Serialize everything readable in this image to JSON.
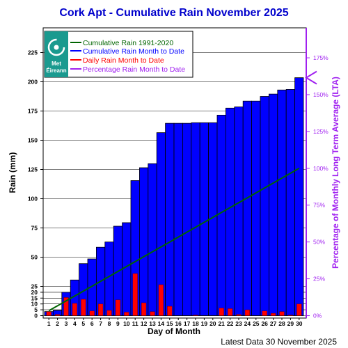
{
  "chart_data": {
    "type": "bar",
    "title": "Cork Apt - Cumulative Rain November   2025",
    "xlabel": "Day of Month",
    "ylabel": "Rain (mm)",
    "y2label": "Percentage of Monthly Long Term Average (LTA)",
    "footer": "Latest Data 30 November 2025",
    "logo_text": [
      "Met",
      "Éireann"
    ],
    "ylim": [
      0,
      240
    ],
    "y2lim": [
      0,
      185
    ],
    "y_ticks": [
      0,
      5,
      10,
      15,
      20,
      25,
      50,
      75,
      100,
      125,
      150,
      175,
      200,
      225
    ],
    "y2_ticks": [
      "0%",
      "25%",
      "50%",
      "75%",
      "100%",
      "125%",
      "150%",
      "175%"
    ],
    "y2_tick_values": [
      0,
      25,
      50,
      75,
      100,
      125,
      150,
      175
    ],
    "grid": true,
    "legend_position": "top-left",
    "days": [
      1,
      2,
      3,
      4,
      5,
      6,
      7,
      8,
      9,
      10,
      11,
      12,
      13,
      14,
      15,
      16,
      17,
      18,
      19,
      20,
      21,
      22,
      23,
      24,
      25,
      26,
      27,
      28,
      29,
      30
    ],
    "series": [
      {
        "name": "Cumulative Rain Month to Date",
        "color": "#0000ff",
        "values": [
          3.5,
          4.5,
          20,
          30.5,
          44.5,
          48.5,
          58.5,
          63,
          76.5,
          79.5,
          115.5,
          126.5,
          130,
          156.5,
          164.5,
          164.5,
          164.5,
          165,
          165,
          165,
          171.5,
          177.5,
          178.5,
          183.5,
          183.5,
          187.5,
          189.5,
          193,
          193.5,
          203.5
        ]
      },
      {
        "name": "Daily Rain Month to Date",
        "color": "#ff0000",
        "values": [
          3.5,
          1,
          15.5,
          10.5,
          14,
          4,
          10,
          4.5,
          13.5,
          3,
          36,
          11,
          3.5,
          26.5,
          8,
          0,
          0,
          0.5,
          0,
          0,
          6.5,
          6,
          1,
          5,
          0,
          4,
          2,
          3.5,
          0.5,
          10
        ]
      },
      {
        "name": "Cumulative Rain 1991-2020",
        "color": "#006400",
        "values": [
          4.2,
          8.4,
          12.6,
          16.8,
          21,
          25.2,
          29.4,
          33.6,
          37.8,
          42,
          46.2,
          50.4,
          54.6,
          58.8,
          63,
          67.2,
          71.4,
          75.6,
          79.8,
          84,
          88.2,
          92.4,
          96.6,
          100.8,
          105,
          109.2,
          113.4,
          117.6,
          121.8,
          126
        ]
      },
      {
        "name": "Percentage Rain Month to Date",
        "color": "#a020f0",
        "percent_value": 161.5
      }
    ]
  }
}
